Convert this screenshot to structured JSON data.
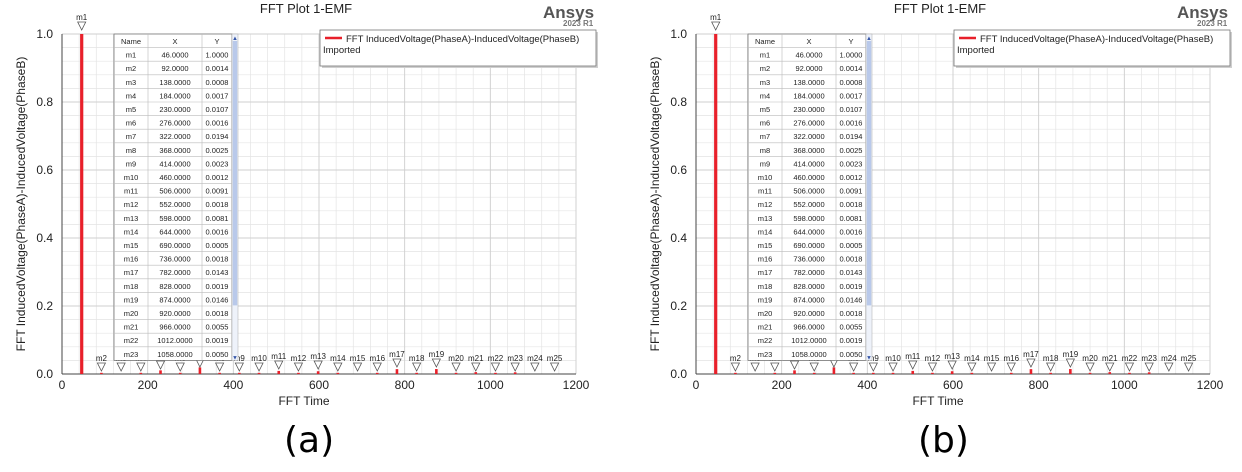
{
  "panels": [
    {
      "id": "a",
      "caption": "(a)",
      "brand": "Ansys",
      "brand_sub": "2023 R1",
      "chart_data": {
        "type": "bar",
        "title": "FFT Plot 1-EMF",
        "xlabel": "FFT Time",
        "ylabel": "FFT InducedVoltage(PhaseA)-InducedVoltage(PhaseB)",
        "xlim": [
          0,
          1200
        ],
        "ylim": [
          0,
          1.0
        ],
        "xticks": [
          0,
          200,
          400,
          600,
          800,
          1000,
          1200
        ],
        "yticks": [
          "0.0",
          "0.2",
          "0.4",
          "0.6",
          "0.8",
          "1.0"
        ],
        "grid": true,
        "legend_position": "top-right",
        "series": [
          {
            "name": "FFT InducedVoltage(PhaseA)-InducedVoltage(PhaseB)",
            "subtitle": "Imported",
            "color": "#e8202a"
          }
        ],
        "marker_table": {
          "headers": [
            "Name",
            "X",
            "Y"
          ],
          "rows": [
            [
              "m1",
              "46.0000",
              "1.0000"
            ],
            [
              "m2",
              "92.0000",
              "0.0014"
            ],
            [
              "m3",
              "138.0000",
              "0.0008"
            ],
            [
              "m4",
              "184.0000",
              "0.0017"
            ],
            [
              "m5",
              "230.0000",
              "0.0107"
            ],
            [
              "m6",
              "276.0000",
              "0.0016"
            ],
            [
              "m7",
              "322.0000",
              "0.0194"
            ],
            [
              "m8",
              "368.0000",
              "0.0025"
            ],
            [
              "m9",
              "414.0000",
              "0.0023"
            ],
            [
              "m10",
              "460.0000",
              "0.0012"
            ],
            [
              "m11",
              "506.0000",
              "0.0091"
            ],
            [
              "m12",
              "552.0000",
              "0.0018"
            ],
            [
              "m13",
              "598.0000",
              "0.0081"
            ],
            [
              "m14",
              "644.0000",
              "0.0016"
            ],
            [
              "m15",
              "690.0000",
              "0.0005"
            ],
            [
              "m16",
              "736.0000",
              "0.0018"
            ],
            [
              "m17",
              "782.0000",
              "0.0143"
            ],
            [
              "m18",
              "828.0000",
              "0.0019"
            ],
            [
              "m19",
              "874.0000",
              "0.0146"
            ],
            [
              "m20",
              "920.0000",
              "0.0018"
            ],
            [
              "m21",
              "966.0000",
              "0.0055"
            ],
            [
              "m22",
              "1012.0000",
              "0.0019"
            ],
            [
              "m23",
              "1058.0000",
              "0.0050"
            ]
          ]
        },
        "markers": [
          {
            "name": "m1",
            "x": 46,
            "y": 1.0
          },
          {
            "name": "m2",
            "x": 92,
            "y": 0.0014
          },
          {
            "name": "m3",
            "x": 138,
            "y": 0.0008
          },
          {
            "name": "m4",
            "x": 184,
            "y": 0.0017
          },
          {
            "name": "m5",
            "x": 230,
            "y": 0.0107
          },
          {
            "name": "m6",
            "x": 276,
            "y": 0.0016
          },
          {
            "name": "m7",
            "x": 322,
            "y": 0.0194
          },
          {
            "name": "m8",
            "x": 368,
            "y": 0.0025
          },
          {
            "name": "m9",
            "x": 414,
            "y": 0.0023
          },
          {
            "name": "m10",
            "x": 460,
            "y": 0.0012
          },
          {
            "name": "m11",
            "x": 506,
            "y": 0.0091
          },
          {
            "name": "m12",
            "x": 552,
            "y": 0.0018
          },
          {
            "name": "m13",
            "x": 598,
            "y": 0.0081
          },
          {
            "name": "m14",
            "x": 644,
            "y": 0.0016
          },
          {
            "name": "m15",
            "x": 690,
            "y": 0.0005
          },
          {
            "name": "m16",
            "x": 736,
            "y": 0.0018
          },
          {
            "name": "m17",
            "x": 782,
            "y": 0.0143
          },
          {
            "name": "m18",
            "x": 828,
            "y": 0.0019
          },
          {
            "name": "m19",
            "x": 874,
            "y": 0.0146
          },
          {
            "name": "m20",
            "x": 920,
            "y": 0.0018
          },
          {
            "name": "m21",
            "x": 966,
            "y": 0.0055
          },
          {
            "name": "m22",
            "x": 1012,
            "y": 0.0019
          },
          {
            "name": "m23",
            "x": 1058,
            "y": 0.005
          },
          {
            "name": "m24",
            "x": 1104,
            "y": 0.001
          },
          {
            "name": "m25",
            "x": 1150,
            "y": 0.001
          }
        ]
      }
    },
    {
      "id": "b",
      "caption": "(b)",
      "brand": "Ansys",
      "brand_sub": "2023 R1",
      "chart_data": {
        "type": "bar",
        "title": "FFT Plot 1-EMF",
        "xlabel": "FFT Time",
        "ylabel": "FFT InducedVoltage(PhaseA)-InducedVoltage(PhaseB)",
        "xlim": [
          0,
          1200
        ],
        "ylim": [
          0,
          1.0
        ],
        "xticks": [
          0,
          200,
          400,
          600,
          800,
          1000,
          1200
        ],
        "yticks": [
          "0.0",
          "0.2",
          "0.4",
          "0.6",
          "0.8",
          "1.0"
        ],
        "grid": true,
        "legend_position": "top-right",
        "series": [
          {
            "name": "FFT InducedVoltage(PhaseA)-InducedVoltage(PhaseB)",
            "subtitle": "Imported",
            "color": "#e8202a"
          }
        ],
        "marker_table": {
          "headers": [
            "Name",
            "X",
            "Y"
          ],
          "rows": [
            [
              "m1",
              "46.0000",
              "1.0000"
            ],
            [
              "m2",
              "92.0000",
              "0.0014"
            ],
            [
              "m3",
              "138.0000",
              "0.0008"
            ],
            [
              "m4",
              "184.0000",
              "0.0017"
            ],
            [
              "m5",
              "230.0000",
              "0.0107"
            ],
            [
              "m6",
              "276.0000",
              "0.0016"
            ],
            [
              "m7",
              "322.0000",
              "0.0194"
            ],
            [
              "m8",
              "368.0000",
              "0.0025"
            ],
            [
              "m9",
              "414.0000",
              "0.0023"
            ],
            [
              "m10",
              "460.0000",
              "0.0012"
            ],
            [
              "m11",
              "506.0000",
              "0.0091"
            ],
            [
              "m12",
              "552.0000",
              "0.0018"
            ],
            [
              "m13",
              "598.0000",
              "0.0081"
            ],
            [
              "m14",
              "644.0000",
              "0.0016"
            ],
            [
              "m15",
              "690.0000",
              "0.0005"
            ],
            [
              "m16",
              "736.0000",
              "0.0018"
            ],
            [
              "m17",
              "782.0000",
              "0.0143"
            ],
            [
              "m18",
              "828.0000",
              "0.0019"
            ],
            [
              "m19",
              "874.0000",
              "0.0146"
            ],
            [
              "m20",
              "920.0000",
              "0.0018"
            ],
            [
              "m21",
              "966.0000",
              "0.0055"
            ],
            [
              "m22",
              "1012.0000",
              "0.0019"
            ],
            [
              "m23",
              "1058.0000",
              "0.0050"
            ]
          ]
        },
        "markers": [
          {
            "name": "m1",
            "x": 46,
            "y": 1.0
          },
          {
            "name": "m2",
            "x": 92,
            "y": 0.0014
          },
          {
            "name": "m3",
            "x": 138,
            "y": 0.0008
          },
          {
            "name": "m4",
            "x": 184,
            "y": 0.0017
          },
          {
            "name": "m5",
            "x": 230,
            "y": 0.0107
          },
          {
            "name": "m6",
            "x": 276,
            "y": 0.0016
          },
          {
            "name": "m7",
            "x": 322,
            "y": 0.0194
          },
          {
            "name": "m8",
            "x": 368,
            "y": 0.0025
          },
          {
            "name": "m9",
            "x": 414,
            "y": 0.0023
          },
          {
            "name": "m10",
            "x": 460,
            "y": 0.0012
          },
          {
            "name": "m11",
            "x": 506,
            "y": 0.0091
          },
          {
            "name": "m12",
            "x": 552,
            "y": 0.0018
          },
          {
            "name": "m13",
            "x": 598,
            "y": 0.0081
          },
          {
            "name": "m14",
            "x": 644,
            "y": 0.0016
          },
          {
            "name": "m15",
            "x": 690,
            "y": 0.0005
          },
          {
            "name": "m16",
            "x": 736,
            "y": 0.0018
          },
          {
            "name": "m17",
            "x": 782,
            "y": 0.0143
          },
          {
            "name": "m18",
            "x": 828,
            "y": 0.0019
          },
          {
            "name": "m19",
            "x": 874,
            "y": 0.0146
          },
          {
            "name": "m20",
            "x": 920,
            "y": 0.0018
          },
          {
            "name": "m21",
            "x": 966,
            "y": 0.0055
          },
          {
            "name": "m22",
            "x": 1012,
            "y": 0.0019
          },
          {
            "name": "m23",
            "x": 1058,
            "y": 0.005
          },
          {
            "name": "m24",
            "x": 1104,
            "y": 0.001
          },
          {
            "name": "m25",
            "x": 1150,
            "y": 0.001
          }
        ]
      }
    }
  ]
}
